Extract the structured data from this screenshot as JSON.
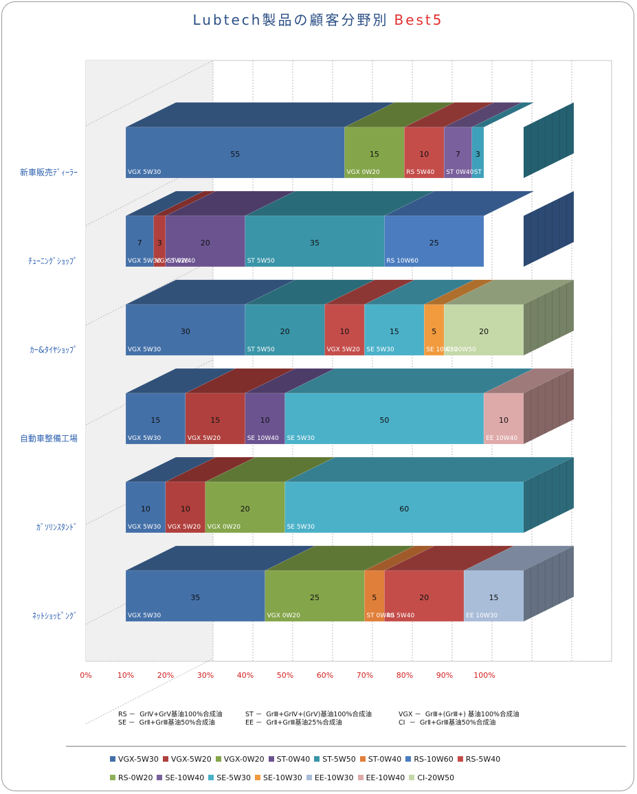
{
  "title_main": "Lubtech製品の顧客分野別",
  "title_accent": "Best5",
  "chart_data": {
    "type": "bar",
    "orientation": "horizontal",
    "stacked": "100%",
    "three_d": true,
    "x_ticks": [
      "0%",
      "10%",
      "20%",
      "30%",
      "40%",
      "50%",
      "60%",
      "70%",
      "80%",
      "90%",
      "100%"
    ],
    "xlim": [
      0,
      100
    ],
    "categories": [
      "新車販売ﾃﾞｨｰﾗｰ",
      "ﾁｭｰﾆﾝｸﾞｼｮｯﾌﾟ",
      "ｶｰ&ﾀｲﾔｼｮｯﾌﾟ",
      "自動車整備工場",
      "ｶﾞｿﾘﾝｽﾀﾝﾄﾞ",
      "ﾈｯﾄｼｮｯﾋﾟﾝｸﾞ"
    ],
    "rows": [
      {
        "category": "新車販売ﾃﾞｨｰﾗｰ",
        "segments": [
          {
            "series": "VGX 5W30",
            "value": 55,
            "color": "#4470a8"
          },
          {
            "series": "VGX 0W20",
            "value": 15,
            "color": "#84a54a"
          },
          {
            "series": "RS 5W40",
            "value": 10,
            "color": "#c44d4a"
          },
          {
            "series": "ST 0W40",
            "value": 7,
            "color": "#7a609c"
          },
          {
            "series": "ST 5W50",
            "value": 3,
            "color": "#3ea0ba"
          }
        ]
      },
      {
        "category": "ﾁｭｰﾆﾝｸﾞｼｮｯﾌﾟ",
        "segments": [
          {
            "series": "VGX 5W30",
            "value": 7,
            "color": "#4470a8"
          },
          {
            "series": "VGX 5W20",
            "value": 3,
            "color": "#b0403d"
          },
          {
            "series": "ST 0W40",
            "value": 20,
            "color": "#6b5390"
          },
          {
            "series": "ST 5W50",
            "value": 35,
            "color": "#3a95a8"
          },
          {
            "series": "RS 10W60",
            "value": 25,
            "color": "#4a7cbf"
          }
        ]
      },
      {
        "category": "ｶｰ&ﾀｲﾔｼｮｯﾌﾟ",
        "segments": [
          {
            "series": "VGX 5W30",
            "value": 30,
            "color": "#4470a8"
          },
          {
            "series": "ST 5W50",
            "value": 20,
            "color": "#3a95a8"
          },
          {
            "series": "VGX 5W20",
            "value": 10,
            "color": "#c44d4a"
          },
          {
            "series": "SE 5W30",
            "value": 15,
            "color": "#4bb1c9"
          },
          {
            "series": "SE 10W30",
            "value": 5,
            "color": "#f19a3e"
          },
          {
            "series": "CI 20W50",
            "value": 20,
            "color": "#c5d8a8"
          }
        ]
      },
      {
        "category": "自動車整備工場",
        "segments": [
          {
            "series": "VGX 5W30",
            "value": 15,
            "color": "#4470a8"
          },
          {
            "series": "VGX 5W20",
            "value": 15,
            "color": "#b0403d"
          },
          {
            "series": "SE 10W40",
            "value": 10,
            "color": "#6b5390"
          },
          {
            "series": "SE 5W30",
            "value": 50,
            "color": "#4bb1c9"
          },
          {
            "series": "EE 10W40",
            "value": 10,
            "color": "#ddaaa9"
          }
        ]
      },
      {
        "category": "ｶﾞｿﾘﾝｽﾀﾝﾄﾞ",
        "segments": [
          {
            "series": "VGX 5W30",
            "value": 10,
            "color": "#4470a8"
          },
          {
            "series": "VGX 5W20",
            "value": 10,
            "color": "#b0403d"
          },
          {
            "series": "VGX 0W20",
            "value": 20,
            "color": "#84a54a"
          },
          {
            "series": "SE 5W30",
            "value": 60,
            "color": "#4bb1c9"
          }
        ]
      },
      {
        "category": "ﾈｯﾄｼｮｯﾋﾟﾝｸﾞ",
        "segments": [
          {
            "series": "VGX 5W30",
            "value": 35,
            "color": "#4470a8"
          },
          {
            "series": "VGX 0W20",
            "value": 25,
            "color": "#84a54a"
          },
          {
            "series": "ST 0W40",
            "value": 5,
            "color": "#e07f3a"
          },
          {
            "series": "RS 5W40",
            "value": 20,
            "color": "#c44d4a"
          },
          {
            "series": "EE 10W30",
            "value": 15,
            "color": "#a9bcd8"
          }
        ]
      }
    ]
  },
  "notes": {
    "col1_line1": "RS －  GrⅣ+GrⅤ基油100%合成油",
    "col1_line2": "SE －  GrⅡ+GrⅢ基油50%合成油",
    "col2_line1": "ST －  GrⅢ+GrⅣ+(GrⅤ)基油100%合成油",
    "col2_line2": "EE －  GrⅡ+GrⅢ基油25%合成油",
    "col3_line1": "VGX －  GrⅢ+(GrⅢ+) 基油100%合成油",
    "col3_line2": "CI  －  GrⅡ+GrⅢ基油50%合成油"
  },
  "legend": [
    {
      "label": "VGX-5W30",
      "color": "#4470a8"
    },
    {
      "label": "VGX-5W20",
      "color": "#b0403d"
    },
    {
      "label": "VGX-0W20",
      "color": "#84a54a"
    },
    {
      "label": "ST-0W40",
      "color": "#6b5390"
    },
    {
      "label": "ST-5W50",
      "color": "#3a95a8"
    },
    {
      "label": "ST-0W40",
      "color": "#e07f3a"
    },
    {
      "label": "RS-10W60",
      "color": "#4a7cbf"
    },
    {
      "label": "RS-5W40",
      "color": "#c44d4a"
    },
    {
      "label": "RS-0W20",
      "color": "#8fb05a"
    },
    {
      "label": "SE-10W40",
      "color": "#7a609c"
    },
    {
      "label": "SE-5W30",
      "color": "#4bb1c9"
    },
    {
      "label": "SE-10W30",
      "color": "#f19a3e"
    },
    {
      "label": "EE-10W30",
      "color": "#a9bcd8"
    },
    {
      "label": "EE-10W40",
      "color": "#ddaaa9"
    },
    {
      "label": "CI-20W50",
      "color": "#c5d8a8"
    }
  ]
}
